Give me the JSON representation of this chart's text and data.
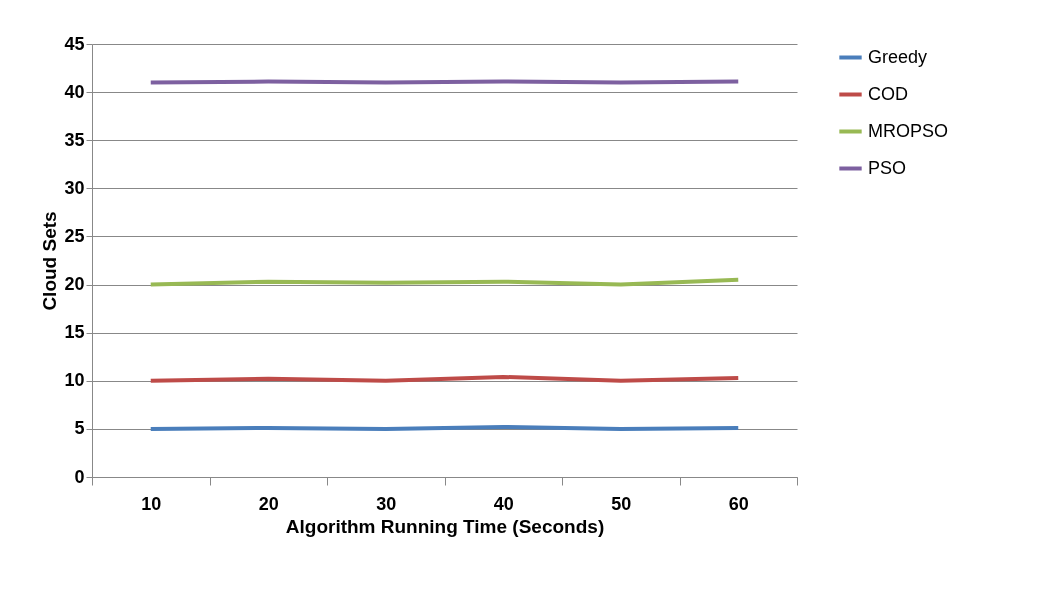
{
  "chart_data": {
    "type": "line",
    "xlabel": "Algorithm Running Time (Seconds)",
    "ylabel": "Cloud Sets",
    "categories": [
      "10",
      "20",
      "30",
      "40",
      "50",
      "60"
    ],
    "series": [
      {
        "name": "Greedy",
        "color": "#4a7ebb",
        "values": [
          5,
          5.1,
          5,
          5.2,
          5,
          5.1
        ]
      },
      {
        "name": "COD",
        "color": "#be4b48",
        "values": [
          10,
          10.2,
          10,
          10.4,
          10,
          10.3
        ]
      },
      {
        "name": "MROPSO",
        "color": "#98b954",
        "values": [
          20,
          20.3,
          20.2,
          20.3,
          20,
          20.5
        ]
      },
      {
        "name": "PSO",
        "color": "#7d60a0",
        "values": [
          41,
          41.1,
          41,
          41.1,
          41,
          41.1
        ]
      }
    ],
    "ylim": [
      0,
      45
    ],
    "yticks": [
      0,
      5,
      10,
      15,
      20,
      25,
      30,
      35,
      40,
      45
    ],
    "grid": "y",
    "legend": "right",
    "marker": "none",
    "line_style": "solid"
  }
}
